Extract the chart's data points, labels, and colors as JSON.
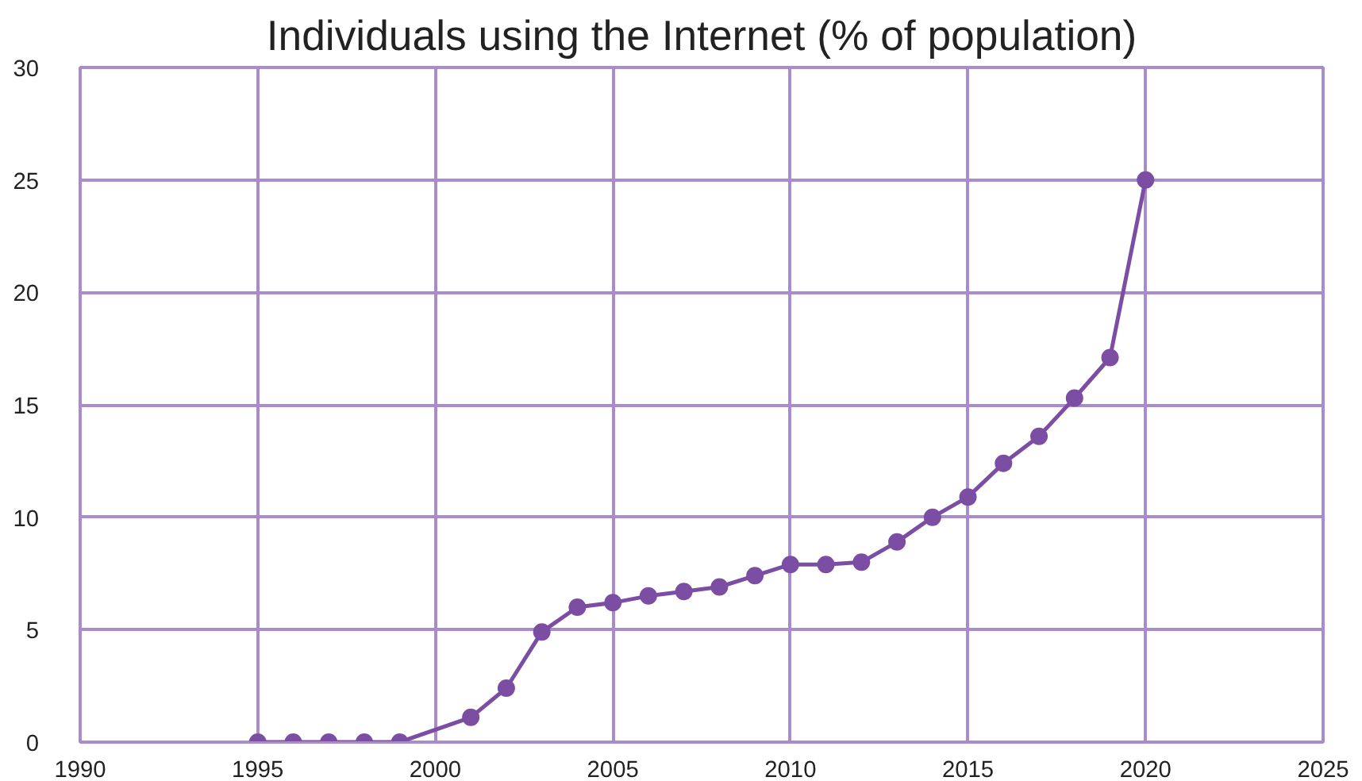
{
  "chart_data": {
    "type": "line",
    "title": "Individuals using the Internet (% of population)",
    "x": [
      1995,
      1996,
      1997,
      1998,
      1999,
      2001,
      2002,
      2003,
      2004,
      2005,
      2006,
      2007,
      2008,
      2009,
      2010,
      2011,
      2012,
      2013,
      2014,
      2015,
      2016,
      2017,
      2018,
      2019,
      2020
    ],
    "series": [
      {
        "color": "#7b4ea3",
        "values": [
          0,
          0,
          0,
          0,
          0,
          1.1,
          2.4,
          4.9,
          6.0,
          6.2,
          6.5,
          6.7,
          6.9,
          7.4,
          7.9,
          7.9,
          8.0,
          8.9,
          10.0,
          10.9,
          12.4,
          13.6,
          15.3,
          17.1,
          25.0
        ]
      }
    ],
    "xlim": [
      1990,
      2025
    ],
    "xticks": [
      1990,
      1995,
      2000,
      2005,
      2010,
      2015,
      2020,
      2025
    ],
    "ylim": [
      0,
      30
    ],
    "yticks": [
      0,
      5,
      10,
      15,
      20,
      25,
      30
    ],
    "grid": true,
    "marker": "circle",
    "line_style": "solid"
  }
}
